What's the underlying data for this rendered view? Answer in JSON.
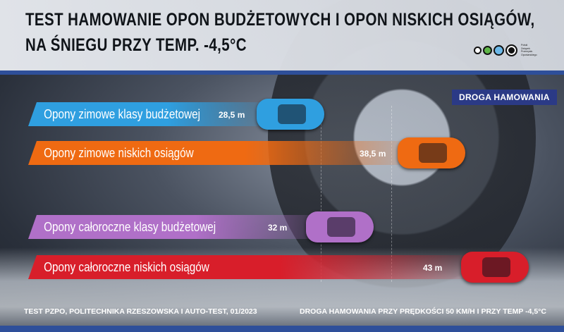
{
  "title_line1": "TEST HAMOWANIE OPON BUDŻETOWYCH I OPON NISKICH OSIĄGÓW,",
  "title_line2": "NA ŚNIEGU PRZY TEMP. -4,5°C",
  "logo_text": [
    "Polski",
    "Związek",
    "Przemysłu",
    "Oponiarskiego"
  ],
  "footer_left": "TEST PZPO, POLITECHNIKA RZESZOWSKA I AUTO-TEST, 01/2023",
  "footer_right": "DROGA HAMOWANIA PRZY PRĘDKOŚCI 50 KM/H I PRZY TEMP -4,5°C",
  "chart_data": {
    "type": "bar",
    "orientation": "horizontal",
    "legend": "DROGA HAMOWANIA",
    "unit": "m",
    "categories": [
      "Opony zimowe klasy budżetowej",
      "Opony zimowe niskich osiągów",
      "Opony całoroczne klasy budżetowej",
      "Opony całoroczne niskich osiągów"
    ],
    "values": [
      28.5,
      38.5,
      32,
      43
    ],
    "value_labels": [
      "28,5 m",
      "38,5 m",
      "32 m",
      "43 m"
    ],
    "colors": [
      "#2f9fe0",
      "#ef6a12",
      "#b070c8",
      "#d81e2a"
    ]
  }
}
